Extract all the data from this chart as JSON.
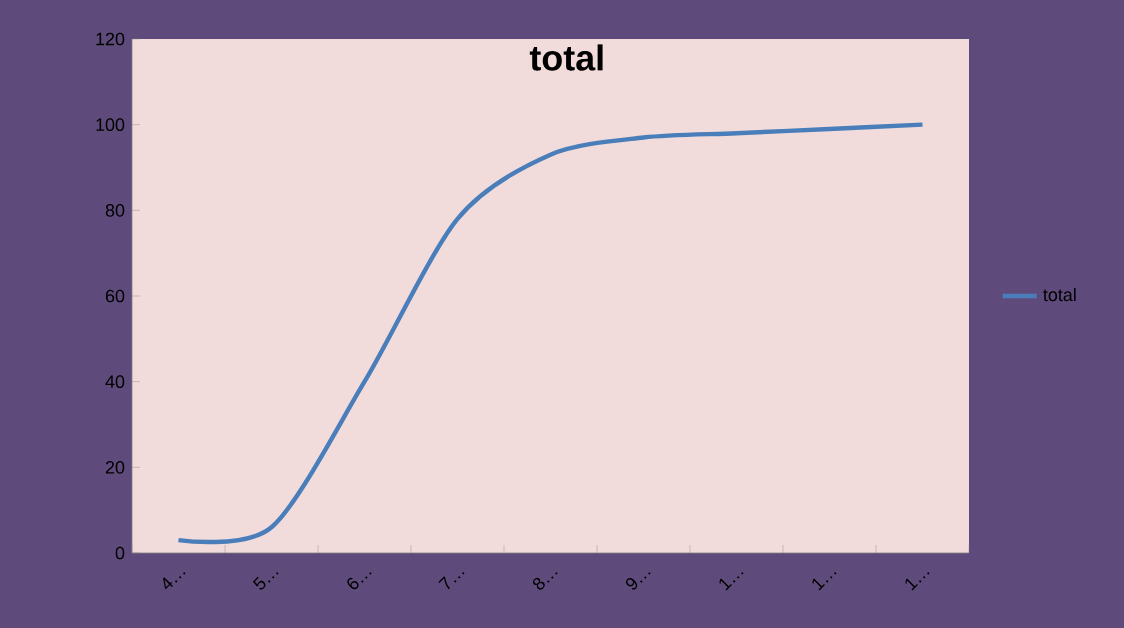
{
  "chart_data": {
    "type": "line",
    "title": "total",
    "categories": [
      "4…",
      "5…",
      "6…",
      "7…",
      "8…",
      "9…",
      "1…",
      "1…",
      "1…"
    ],
    "series": [
      {
        "name": "total",
        "color": "#4a7ebb",
        "values": [
          3,
          6,
          40,
          78,
          93,
          97,
          98,
          99,
          100
        ]
      }
    ],
    "ylim": [
      0,
      120
    ],
    "yticks": [
      0,
      20,
      40,
      60,
      80,
      100,
      120
    ],
    "legend": "right",
    "marker": "none",
    "line_style": "solid"
  }
}
